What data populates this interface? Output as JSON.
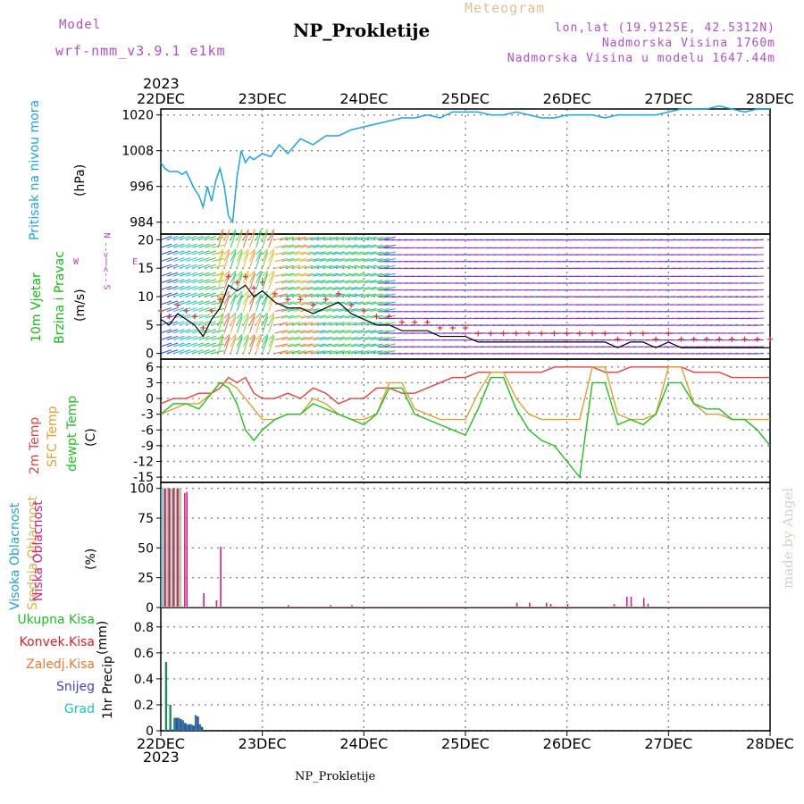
{
  "header": {
    "model_label": "Model",
    "model_name": "wrf-nmm_v3.9.1 e1km",
    "title": "NP_Prokletije",
    "meteogram": "Meteogram",
    "lonlat": "lon,lat (19.9125E, 42.5312N)",
    "altitude": "Nadmorska Visina 1760m",
    "model_altitude": "Nadmorska Visina u modelu 1647.44m",
    "year_top": "2023",
    "year_bottom": "2023",
    "footer_station": "NP_Prokletije",
    "watermark": "made by Angel"
  },
  "colors": {
    "pressure": "#1ba6e0",
    "wind_label": "#00c800",
    "temp2m": "#e84040",
    "sfc_temp": "#e0a030",
    "dewpt": "#20c020",
    "cloud_high": "#20a0d8",
    "cloud_mid": "#e0b040",
    "cloud_low": "#d0208a",
    "precip_total": "#20c020",
    "precip_conv": "#e02020",
    "precip_frozen": "#f07830",
    "snow": "#4040d0",
    "hail": "#20c0c0",
    "compass": "#b040b0",
    "grid": "#888888"
  },
  "chart_data": [
    {
      "type": "line",
      "panel": "pressure",
      "ylabel_name": "Pritisak na nivou mora",
      "ylabel_unit": "(hPa)",
      "x_dates": [
        "22DEC",
        "23DEC",
        "24DEC",
        "25DEC",
        "26DEC",
        "27DEC",
        "28DEC"
      ],
      "xlim_hours": [
        0,
        144
      ],
      "ylim": [
        980,
        1022
      ],
      "yticks": [
        984,
        996,
        1008,
        1020
      ],
      "series": [
        {
          "color_key": "pressure",
          "x": [
            0,
            1,
            2,
            3,
            4,
            5,
            6,
            7,
            8,
            9,
            10,
            11,
            12,
            13,
            14,
            15,
            16,
            17,
            18,
            19,
            20,
            21,
            22,
            24,
            26,
            28,
            30,
            33,
            36,
            39,
            42,
            45,
            48,
            51,
            54,
            57,
            60,
            63,
            66,
            69,
            72,
            75,
            78,
            81,
            84,
            87,
            90,
            93,
            96,
            99,
            102,
            105,
            108,
            111,
            114,
            117,
            120,
            123,
            126,
            129,
            132,
            135,
            138,
            141,
            144
          ],
          "y": [
            1004,
            1002,
            1001,
            1001,
            1001,
            1000,
            1001,
            998,
            995,
            993,
            989,
            996,
            991,
            998,
            1002,
            996,
            986,
            984,
            999,
            1008,
            1004,
            1006,
            1005,
            1007,
            1006,
            1010,
            1007,
            1012,
            1010,
            1013,
            1013,
            1015,
            1016,
            1017,
            1018,
            1019,
            1019,
            1020,
            1019,
            1021,
            1021,
            1021,
            1020,
            1020,
            1021,
            1020,
            1019,
            1019,
            1020,
            1020,
            1020,
            1019,
            1020,
            1020,
            1020,
            1020,
            1021,
            1022,
            1022,
            1022,
            1023,
            1022,
            1021,
            1022,
            1022
          ]
        }
      ]
    },
    {
      "type": "scatter",
      "panel": "wind",
      "ylabel_name1": "10m Vjetar",
      "ylabel_name2": "Brzina i Pravac",
      "ylabel_unit": "(m/s)",
      "compass_labels": [
        "N",
        "<--",
        "|",
        "-->",
        "S"
      ],
      "compass_ew": [
        "W",
        "E"
      ],
      "ylim": [
        -1,
        21
      ],
      "yticks": [
        0,
        5,
        10,
        15,
        20
      ],
      "series": [
        {
          "name": "speed",
          "x": [
            0,
            2,
            4,
            6,
            8,
            10,
            12,
            14,
            16,
            18,
            20,
            22,
            24,
            27,
            30,
            33,
            36,
            39,
            42,
            45,
            48,
            51,
            54,
            57,
            60,
            63,
            66,
            69,
            72,
            75,
            78,
            81,
            84,
            87,
            90,
            93,
            96,
            99,
            102,
            105,
            108,
            111,
            114,
            117,
            120,
            123,
            126,
            129,
            132,
            135,
            138,
            141,
            144
          ],
          "y": [
            6,
            5,
            7,
            6,
            5,
            3,
            6,
            8,
            12,
            11,
            12,
            10,
            11,
            9,
            8,
            8,
            7,
            8,
            9,
            7,
            6,
            5,
            5,
            4,
            4,
            4,
            3,
            3,
            3,
            2,
            2,
            2,
            2,
            2,
            2,
            2,
            2,
            2,
            2,
            2,
            1,
            2,
            2,
            1,
            2,
            1,
            1,
            1,
            1,
            1,
            1,
            1,
            1
          ]
        }
      ]
    },
    {
      "type": "line",
      "panel": "temperature",
      "ylabel_name1": "2m Temp",
      "ylabel_name2": "SFC Temp",
      "ylabel_name3": "dewpt Temp",
      "ylabel_unit": "(C)",
      "ylim": [
        -16,
        7.5
      ],
      "yticks": [
        6,
        3,
        0,
        -3,
        -6,
        -9,
        -12,
        -15
      ],
      "series": [
        {
          "color_key": "temp2m",
          "x": [
            0,
            3,
            6,
            9,
            12,
            14,
            16,
            18,
            20,
            22,
            24,
            27,
            30,
            33,
            36,
            39,
            42,
            45,
            48,
            51,
            54,
            57,
            60,
            63,
            66,
            69,
            72,
            75,
            78,
            81,
            84,
            87,
            90,
            93,
            96,
            99,
            102,
            105,
            108,
            111,
            114,
            117,
            120,
            123,
            126,
            129,
            132,
            135,
            138,
            141,
            144
          ],
          "y": [
            -1,
            0,
            0,
            1,
            1,
            2,
            4,
            3,
            4,
            1,
            0,
            0,
            1,
            0,
            2,
            1,
            -1,
            0,
            0,
            2,
            2,
            1,
            1,
            2,
            3,
            4,
            4,
            5,
            5,
            5,
            5,
            5,
            5,
            6,
            6,
            6,
            6,
            5,
            5,
            6,
            6,
            6,
            6,
            6,
            5,
            5,
            5,
            4,
            4,
            4,
            4
          ]
        },
        {
          "color_key": "sfc_temp",
          "x": [
            0,
            3,
            6,
            9,
            12,
            14,
            16,
            18,
            20,
            22,
            24,
            27,
            30,
            33,
            36,
            39,
            42,
            45,
            48,
            51,
            54,
            57,
            60,
            63,
            66,
            69,
            72,
            75,
            78,
            81,
            84,
            87,
            90,
            93,
            96,
            99,
            102,
            105,
            108,
            111,
            114,
            117,
            120,
            123,
            126,
            129,
            132,
            135,
            138,
            141,
            144
          ],
          "y": [
            -3,
            -2,
            -1,
            -1,
            1,
            3,
            3,
            2,
            0,
            -2,
            -4,
            -4,
            -3,
            -3,
            0,
            -1,
            -3,
            -4,
            -4,
            -3,
            3,
            3,
            -2,
            -3,
            -4,
            -4,
            -4,
            1,
            5,
            5,
            0,
            -3,
            -4,
            -4,
            -4,
            -4,
            6,
            6,
            -3,
            -4,
            -4,
            -3,
            6,
            6,
            -1,
            -3,
            -3,
            -4,
            -4,
            -4,
            -4
          ]
        },
        {
          "color_key": "dewpt",
          "x": [
            0,
            3,
            6,
            9,
            12,
            14,
            16,
            18,
            20,
            22,
            24,
            27,
            30,
            33,
            36,
            39,
            42,
            45,
            48,
            51,
            54,
            57,
            60,
            63,
            66,
            69,
            72,
            75,
            78,
            81,
            84,
            87,
            90,
            93,
            96,
            99,
            102,
            105,
            108,
            111,
            114,
            117,
            120,
            123,
            126,
            129,
            132,
            135,
            138,
            141,
            144
          ],
          "y": [
            -3,
            -1,
            -1,
            -2,
            1,
            3,
            2,
            -1,
            -6,
            -8,
            -6,
            -4,
            -3,
            -3,
            -1,
            -2,
            -3,
            -4,
            -5,
            -3,
            2,
            2,
            -3,
            -4,
            -5,
            -6,
            -7,
            -2,
            4,
            4,
            -2,
            -6,
            -8,
            -9,
            -12,
            -15,
            3,
            3,
            -5,
            -4,
            -5,
            -3,
            3,
            3,
            -1,
            -2,
            -2,
            -4,
            -4,
            -6,
            -9
          ]
        }
      ]
    },
    {
      "type": "bar",
      "panel": "clouds",
      "ylabel_name1": "Visoka Oblacnost",
      "ylabel_name2": "Srednja Oblacnost",
      "ylabel_name3": "Niska Oblacnost",
      "ylabel_unit": "(%)",
      "ylim": [
        0,
        105
      ],
      "yticks": [
        0,
        25,
        50,
        75,
        100
      ],
      "series": [
        {
          "color_key": "cloud_high",
          "x": [
            0,
            1,
            2,
            3,
            4
          ],
          "values": [
            100,
            100,
            100,
            100,
            100
          ]
        },
        {
          "color_key": "cloud_mid",
          "x": [
            0.5,
            1.5,
            2.5,
            3.5,
            4.5
          ],
          "values": [
            100,
            100,
            100,
            100,
            100
          ]
        },
        {
          "color_key": "cloud_low",
          "x": [
            0.8,
            1.8,
            2.8,
            3.8,
            5.5,
            6.0,
            10,
            13,
            14,
            30,
            40,
            45,
            84,
            87,
            91,
            92,
            96,
            107,
            110,
            111,
            114,
            115
          ],
          "values": [
            100,
            100,
            100,
            100,
            96,
            97,
            12,
            6,
            51,
            2,
            2,
            2,
            4,
            4,
            4,
            3,
            3,
            3,
            9,
            9,
            8,
            3
          ]
        }
      ]
    },
    {
      "type": "bar",
      "panel": "precip",
      "legend": [
        "Ukupna Kisa",
        "Konvek.Kisa",
        "Zaledj.Kisa",
        "Snijeg",
        "Grad"
      ],
      "ylabel_name": "1hr Precip",
      "ylabel_unit": "(mm)",
      "ylim": [
        0,
        0.95
      ],
      "yticks": [
        0,
        0.2,
        0.4,
        0.6,
        0.8
      ],
      "series": [
        {
          "color_key": "precip_total",
          "x": [
            1,
            2,
            3,
            4,
            5,
            6,
            7,
            8,
            9
          ],
          "values": [
            0.53,
            0.2,
            0.1,
            0.1,
            0.08,
            0.05,
            0.05,
            0.12,
            0.05
          ]
        },
        {
          "color_key": "snow",
          "x": [
            1.5,
            2.5,
            3.5,
            4.5,
            5.5,
            6.5,
            7.5,
            8.5,
            9.5
          ],
          "values": [
            0.0,
            0.01,
            0.1,
            0.09,
            0.06,
            0.05,
            0.04,
            0.11,
            0.03
          ]
        }
      ]
    }
  ]
}
